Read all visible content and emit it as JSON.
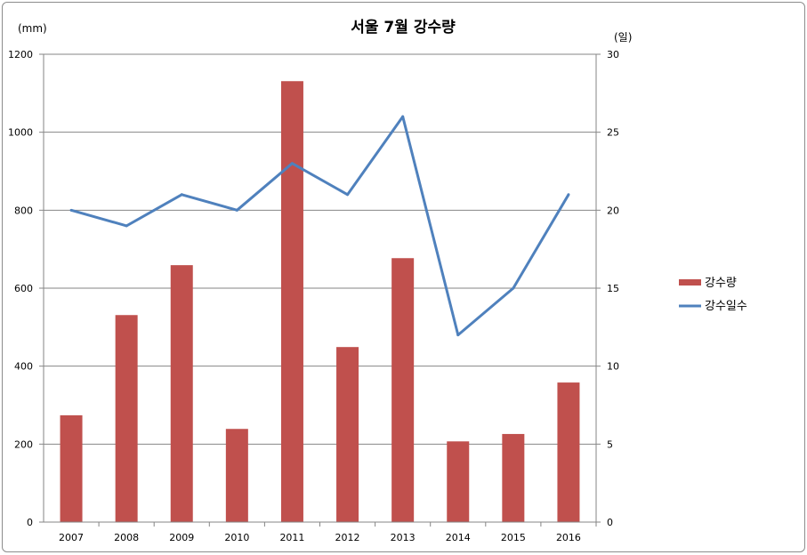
{
  "chart_data": {
    "type": "bar+line",
    "title": "서울 7월 강수량",
    "categories": [
      "2007",
      "2008",
      "2009",
      "2010",
      "2011",
      "2012",
      "2013",
      "2014",
      "2015",
      "2016"
    ],
    "series": [
      {
        "name": "강수량",
        "type": "bar",
        "axis": "left",
        "color": "#c0504d",
        "values": [
          274,
          531,
          659,
          239,
          1131,
          449,
          677,
          207,
          226,
          358
        ]
      },
      {
        "name": "강수일수",
        "type": "line",
        "axis": "right",
        "color": "#4f81bd",
        "values": [
          20,
          19,
          21,
          20,
          23,
          21,
          26,
          12,
          15,
          21
        ]
      }
    ],
    "y_left": {
      "label": "(mm)",
      "min": 0,
      "max": 1200,
      "ticks": [
        0,
        200,
        400,
        600,
        800,
        1000,
        1200
      ]
    },
    "y_right": {
      "label": "(일)",
      "min": 0,
      "max": 30,
      "ticks": [
        0,
        5,
        10,
        15,
        20,
        25,
        30
      ]
    },
    "grid": true,
    "legend_position": "right"
  }
}
